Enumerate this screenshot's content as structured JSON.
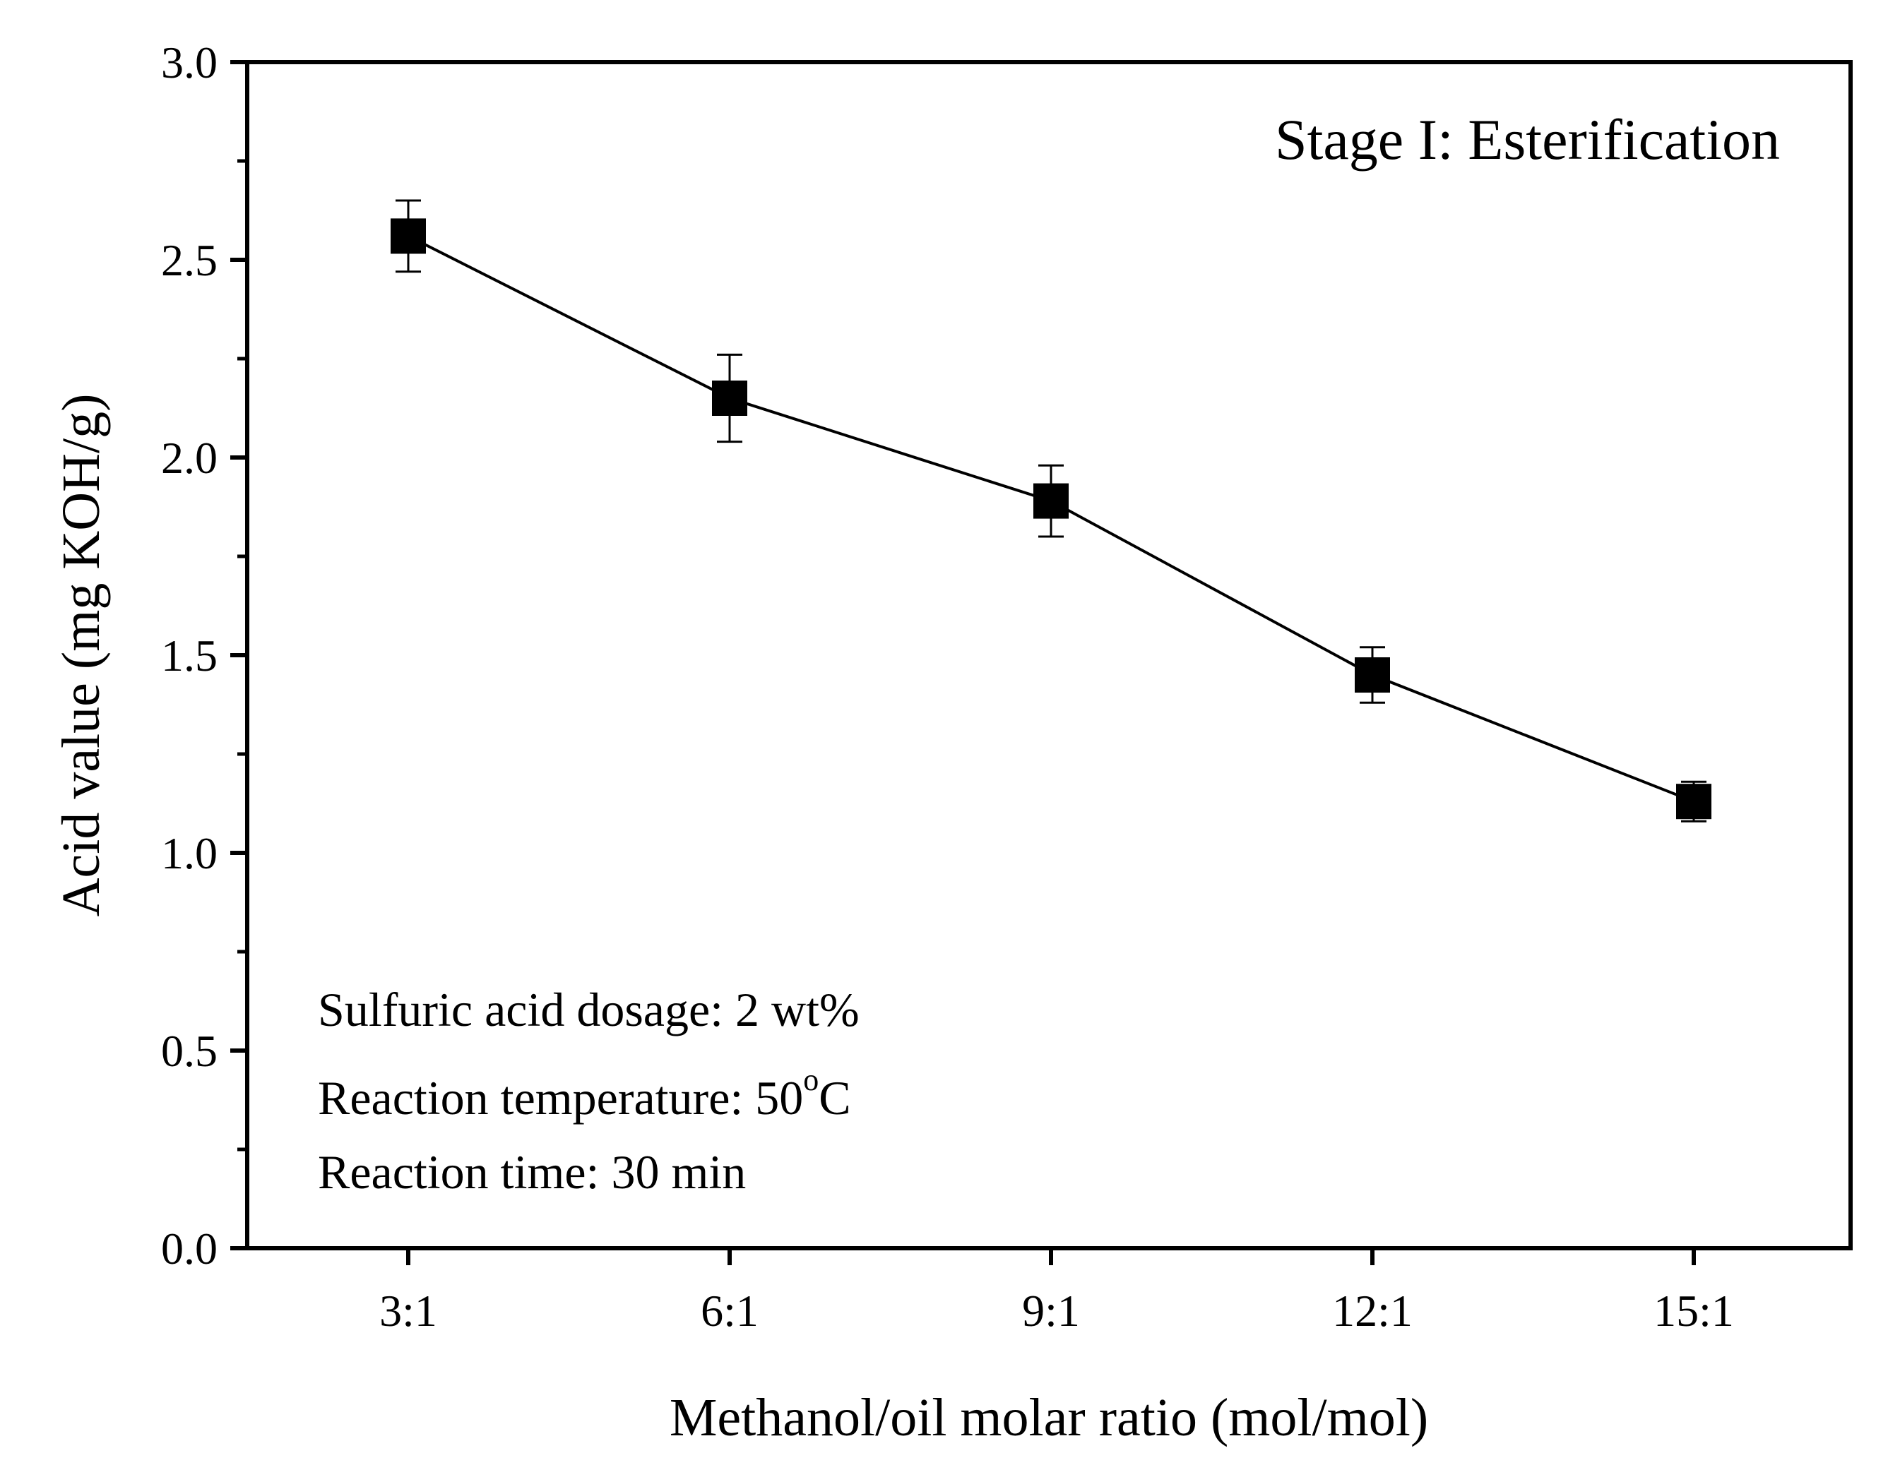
{
  "chart_data": {
    "type": "line",
    "title": "",
    "xlabel": "Methanol/oil molar ratio (mol/mol)",
    "ylabel": "Acid value (mg KOH/g)",
    "categories": [
      "3:1",
      "6:1",
      "9:1",
      "12:1",
      "15:1"
    ],
    "series": [
      {
        "name": "Acid value",
        "values": [
          2.56,
          2.15,
          1.89,
          1.45,
          1.13
        ],
        "errors": [
          0.09,
          0.11,
          0.09,
          0.07,
          0.05
        ],
        "marker": "filled-square",
        "color": "#000000"
      }
    ],
    "ylim": [
      0,
      3.0
    ],
    "yticks": [
      0.0,
      0.5,
      1.0,
      1.5,
      2.0,
      2.5,
      3.0
    ],
    "ytick_labels": [
      "0.0",
      "0.5",
      "1.0",
      "1.5",
      "2.0",
      "2.5",
      "3.0"
    ],
    "grid": false,
    "annotations": {
      "stage": "Stage I: Esterification",
      "stage_color": "#1515e8",
      "condition_1": "Sulfuric acid dosage: 2 wt%",
      "condition_2_prefix": "Reaction temperature: 50",
      "condition_2_sup": "o",
      "condition_2_suffix": "C",
      "condition_3": "Reaction time: 30 min"
    }
  }
}
